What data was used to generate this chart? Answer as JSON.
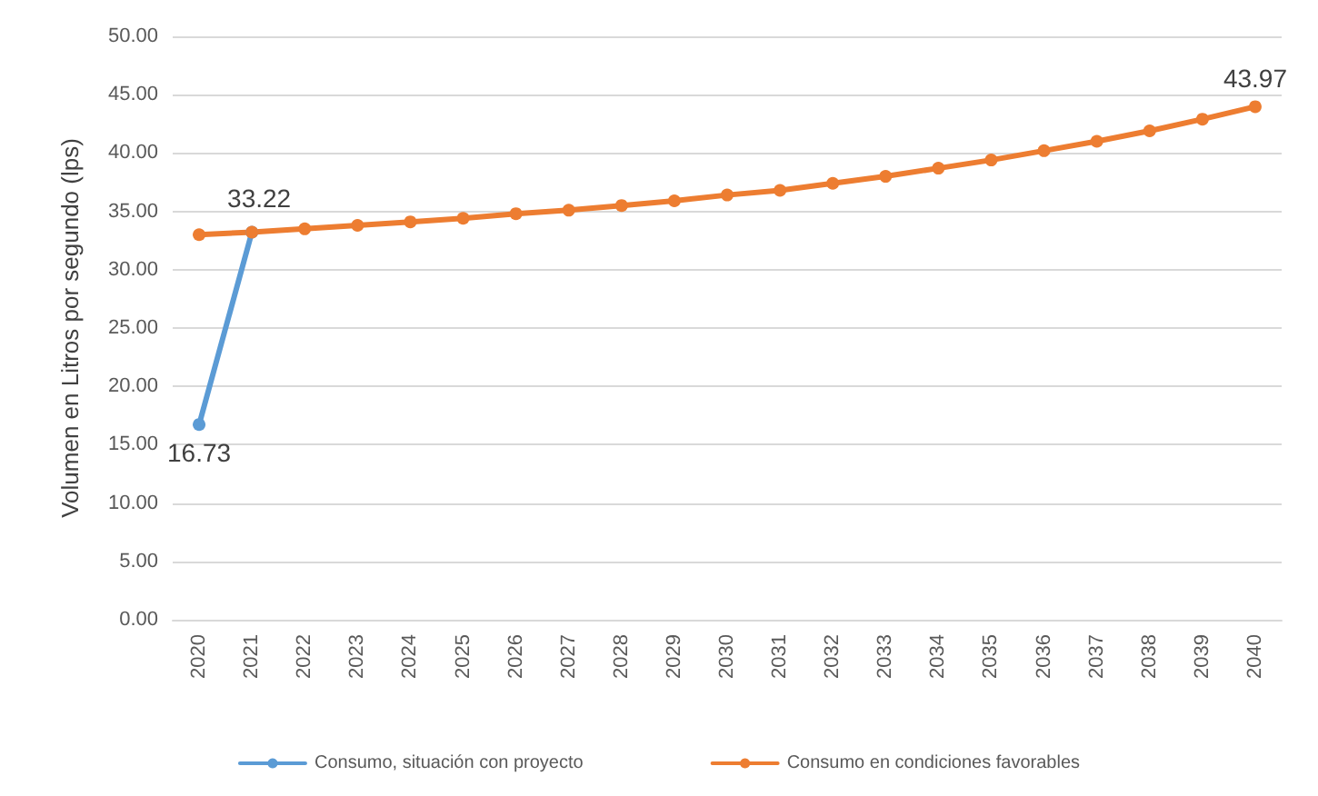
{
  "chart_data": {
    "type": "line",
    "ylabel": "Volumen en Litros por segundo (lps)",
    "categories": [
      "2020",
      "2021",
      "2022",
      "2023",
      "2024",
      "2025",
      "2026",
      "2027",
      "2028",
      "2029",
      "2030",
      "2031",
      "2032",
      "2033",
      "2034",
      "2035",
      "2036",
      "2037",
      "2038",
      "2039",
      "2040"
    ],
    "series": [
      {
        "name": "Consumo, situación con proyecto",
        "color": "#5b9bd5",
        "values": [
          16.73,
          33.22,
          null,
          null,
          null,
          null,
          null,
          null,
          null,
          null,
          null,
          null,
          null,
          null,
          null,
          null,
          null,
          null,
          null,
          null,
          null
        ],
        "value_labels": [
          "16.73",
          "33.22",
          null,
          null,
          null,
          null,
          null,
          null,
          null,
          null,
          null,
          null,
          null,
          null,
          null,
          null,
          null,
          null,
          null,
          null,
          null
        ]
      },
      {
        "name": "Consumo en condiciones favorables",
        "color": "#ed7d31",
        "values": [
          33.0,
          33.22,
          33.5,
          33.8,
          34.1,
          34.4,
          34.8,
          35.1,
          35.5,
          35.9,
          36.4,
          36.8,
          37.4,
          38.0,
          38.7,
          39.4,
          40.2,
          41.0,
          41.9,
          42.9,
          43.97
        ],
        "value_labels": [
          null,
          null,
          null,
          null,
          null,
          null,
          null,
          null,
          null,
          null,
          null,
          null,
          null,
          null,
          null,
          null,
          null,
          null,
          null,
          null,
          "43.97"
        ]
      }
    ],
    "ylim": [
      0,
      50
    ],
    "yticks": [
      {
        "value": 0,
        "label": "0.00"
      },
      {
        "value": 5,
        "label": "5.00"
      },
      {
        "value": 10,
        "label": "10.00"
      },
      {
        "value": 15,
        "label": "15.00"
      },
      {
        "value": 20,
        "label": "20.00"
      },
      {
        "value": 25,
        "label": "25.00"
      },
      {
        "value": 30,
        "label": "30.00"
      },
      {
        "value": 35,
        "label": "35.00"
      },
      {
        "value": 40,
        "label": "40.00"
      },
      {
        "value": 45,
        "label": "45.00"
      },
      {
        "value": 50,
        "label": "50.00"
      }
    ],
    "grid": "y",
    "legend": "bottom",
    "marker": "circle",
    "line_style": "solid"
  }
}
